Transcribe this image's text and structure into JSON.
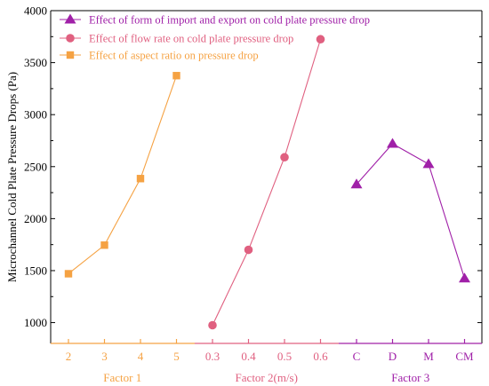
{
  "chart_data": {
    "type": "line",
    "ylabel": "Microchannel Cold Plate Pressure Drops (Pa)",
    "ylim": [
      800,
      4000
    ],
    "yticks": [
      1000,
      1500,
      2000,
      2500,
      3000,
      3500,
      4000
    ],
    "grid": false,
    "legend_position": "top-left",
    "factors": [
      {
        "title": "Factor 1",
        "title_color": "#f5a243",
        "categories": [
          "2",
          "3",
          "4",
          "5"
        ]
      },
      {
        "title": "Factor 2(m/s)",
        "title_color": "#e06080",
        "categories": [
          "0.3",
          "0.4",
          "0.5",
          "0.6"
        ]
      },
      {
        "title": "Factor 3",
        "title_color": "#a020a8",
        "categories": [
          "C",
          "D",
          "M",
          "CM"
        ]
      }
    ],
    "series": [
      {
        "name": "Effect of form of import and export on cold plate pressure drop",
        "factor": 2,
        "color": "#a020a8",
        "marker": "triangle",
        "values": [
          2330,
          2720,
          2525,
          1425
        ]
      },
      {
        "name": "Effect of flow rate on cold plate pressure drop",
        "factor": 1,
        "color": "#e06080",
        "marker": "circle",
        "values": [
          975,
          1700,
          2590,
          3725
        ]
      },
      {
        "name": "Effect of aspect ratio on pressure drop",
        "factor": 0,
        "color": "#f5a243",
        "marker": "square",
        "values": [
          1470,
          1745,
          2385,
          3375
        ]
      }
    ]
  }
}
